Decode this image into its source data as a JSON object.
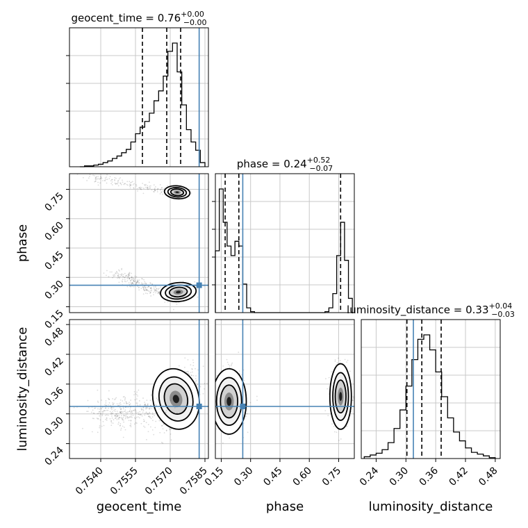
{
  "chart_data": {
    "type": "corner",
    "parameters": [
      "geocent_time",
      "phase",
      "luminosity_distance"
    ],
    "truth": {
      "geocent_time": 0.75825,
      "phase": 0.26,
      "luminosity_distance": 0.315
    },
    "axes": {
      "geocent_time": {
        "range": [
          0.75265,
          0.75865
        ],
        "ticks": [
          0.754,
          0.7555,
          0.757,
          0.7585
        ],
        "tick_labels": [
          "0.7540",
          "0.7555",
          "0.7570",
          "0.7585"
        ]
      },
      "phase": {
        "range": [
          0.12,
          0.83
        ],
        "ticks": [
          0.15,
          0.3,
          0.45,
          0.6,
          0.75
        ],
        "tick_labels": [
          "0.15",
          "0.30",
          "0.45",
          "0.60",
          "0.75"
        ]
      },
      "luminosity_distance": {
        "range": [
          0.21,
          0.49
        ],
        "ticks": [
          0.24,
          0.3,
          0.36,
          0.42,
          0.48
        ],
        "tick_labels": [
          "0.24",
          "0.30",
          "0.36",
          "0.42",
          "0.48"
        ]
      }
    },
    "titles": [
      {
        "param": "geocent_time",
        "label": "geocent_time = 0.76",
        "plus": "+0.00",
        "minus": "−0.00"
      },
      {
        "param": "phase",
        "label": "phase = 0.24",
        "plus": "+0.52",
        "minus": "−0.07"
      },
      {
        "param": "luminosity_distance",
        "label": "luminosity_distance = 0.33",
        "plus": "+0.04",
        "minus": "−0.03"
      }
    ],
    "quantiles": {
      "geocent_time": [
        0.7558,
        0.75685,
        0.75745
      ],
      "phase": [
        0.17,
        0.24,
        0.76
      ],
      "luminosity_distance": [
        0.302,
        0.332,
        0.371
      ]
    },
    "histograms": {
      "geocent_time": {
        "edges": [
          0.7531,
          0.7533,
          0.7535,
          0.7537,
          0.7539,
          0.7541,
          0.7543,
          0.7545,
          0.7547,
          0.7549,
          0.7551,
          0.7553,
          0.7555,
          0.7557,
          0.7559,
          0.7561,
          0.7563,
          0.7565,
          0.7567,
          0.7569,
          0.7571,
          0.7573,
          0.7575,
          0.7577,
          0.7579,
          0.7581,
          0.7583,
          0.7585
        ],
        "counts": [
          0,
          1,
          1,
          2,
          3,
          5,
          7,
          10,
          13,
          17,
          21,
          30,
          40,
          48,
          55,
          65,
          80,
          92,
          110,
          140,
          150,
          115,
          75,
          45,
          30,
          20,
          5
        ]
      },
      "phase": {
        "edges": [
          0.12,
          0.14,
          0.16,
          0.18,
          0.2,
          0.22,
          0.24,
          0.26,
          0.28,
          0.3,
          0.32,
          0.34,
          0.36,
          0.38,
          0.4,
          0.42,
          0.44,
          0.46,
          0.48,
          0.5,
          0.52,
          0.54,
          0.56,
          0.58,
          0.6,
          0.62,
          0.64,
          0.66,
          0.68,
          0.7,
          0.72,
          0.74,
          0.76,
          0.78,
          0.8,
          0.82
        ],
        "counts": [
          65,
          130,
          95,
          70,
          60,
          75,
          70,
          30,
          5,
          1,
          0,
          0,
          0,
          0,
          0,
          0,
          0,
          0,
          0,
          0,
          0,
          0,
          0,
          0,
          0,
          0,
          0,
          0,
          1,
          5,
          20,
          60,
          95,
          55,
          15
        ]
      },
      "luminosity_distance": {
        "edges": [
          0.216,
          0.228,
          0.24,
          0.252,
          0.264,
          0.276,
          0.288,
          0.3,
          0.312,
          0.324,
          0.336,
          0.348,
          0.36,
          0.372,
          0.384,
          0.396,
          0.408,
          0.42,
          0.432,
          0.444,
          0.456,
          0.468,
          0.48
        ],
        "counts": [
          2,
          4,
          6,
          10,
          18,
          34,
          55,
          82,
          112,
          135,
          140,
          123,
          98,
          70,
          46,
          30,
          20,
          12,
          7,
          5,
          3,
          1
        ]
      }
    },
    "grid": true
  }
}
